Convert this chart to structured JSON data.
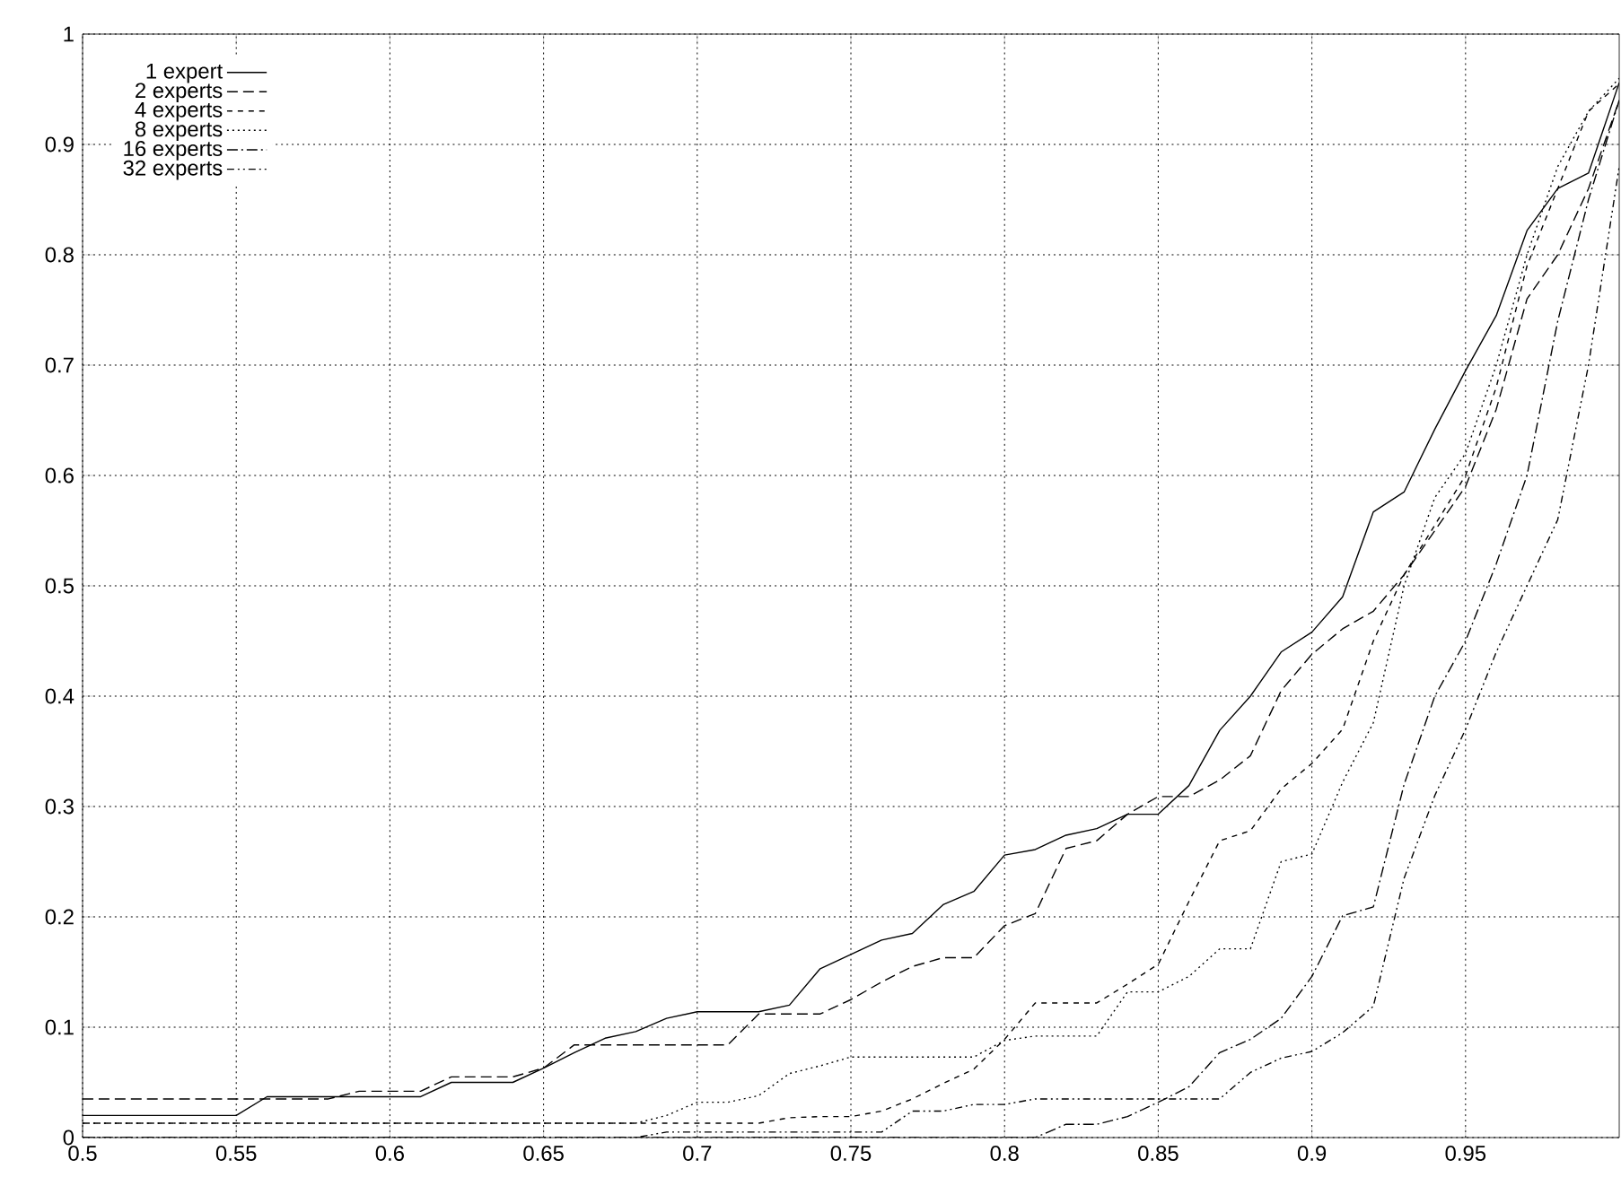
{
  "chart_data": {
    "type": "line",
    "x": [
      0.5,
      0.51,
      0.52,
      0.53,
      0.54,
      0.55,
      0.56,
      0.57,
      0.58,
      0.59,
      0.6,
      0.61,
      0.62,
      0.63,
      0.64,
      0.65,
      0.66,
      0.67,
      0.68,
      0.69,
      0.7,
      0.71,
      0.72,
      0.73,
      0.74,
      0.75,
      0.76,
      0.77,
      0.78,
      0.79,
      0.8,
      0.81,
      0.82,
      0.83,
      0.84,
      0.85,
      0.86,
      0.87,
      0.88,
      0.89,
      0.9,
      0.91,
      0.92,
      0.93,
      0.94,
      0.95,
      0.96,
      0.97,
      0.98,
      0.99,
      1.0
    ],
    "series": [
      {
        "name": "1 expert",
        "color": "#000000",
        "line_style": "solid",
        "values": [
          0.02,
          0.02,
          0.02,
          0.02,
          0.02,
          0.02,
          0.037,
          0.037,
          0.037,
          0.037,
          0.037,
          0.037,
          0.05,
          0.05,
          0.05,
          0.063,
          0.077,
          0.09,
          0.096,
          0.108,
          0.114,
          0.114,
          0.114,
          0.12,
          0.153,
          0.166,
          0.179,
          0.185,
          0.211,
          0.223,
          0.256,
          0.261,
          0.274,
          0.28,
          0.293,
          0.293,
          0.319,
          0.369,
          0.4,
          0.44,
          0.458,
          0.49,
          0.567,
          0.585,
          0.642,
          0.695,
          0.745,
          0.822,
          0.86,
          0.874,
          0.956
        ]
      },
      {
        "name": "2 experts",
        "color": "#000000",
        "line_style": "dashed",
        "values": [
          0.035,
          0.035,
          0.035,
          0.035,
          0.035,
          0.035,
          0.035,
          0.035,
          0.035,
          0.042,
          0.042,
          0.042,
          0.055,
          0.055,
          0.055,
          0.063,
          0.084,
          0.084,
          0.084,
          0.084,
          0.084,
          0.084,
          0.112,
          0.112,
          0.112,
          0.125,
          0.141,
          0.155,
          0.163,
          0.163,
          0.192,
          0.203,
          0.262,
          0.269,
          0.293,
          0.309,
          0.309,
          0.324,
          0.346,
          0.405,
          0.438,
          0.461,
          0.477,
          0.51,
          0.55,
          0.59,
          0.66,
          0.76,
          0.8,
          0.86,
          0.94
        ]
      },
      {
        "name": "4 experts",
        "color": "#000000",
        "line_style": "shortdashed",
        "values": [
          0.013,
          0.013,
          0.013,
          0.013,
          0.013,
          0.013,
          0.013,
          0.013,
          0.013,
          0.013,
          0.013,
          0.013,
          0.013,
          0.013,
          0.013,
          0.013,
          0.013,
          0.013,
          0.013,
          0.013,
          0.013,
          0.013,
          0.013,
          0.018,
          0.019,
          0.019,
          0.024,
          0.035,
          0.049,
          0.062,
          0.089,
          0.122,
          0.122,
          0.122,
          0.139,
          0.157,
          0.214,
          0.269,
          0.278,
          0.316,
          0.339,
          0.37,
          0.45,
          0.51,
          0.555,
          0.6,
          0.68,
          0.79,
          0.86,
          0.93,
          0.955
        ]
      },
      {
        "name": "8 experts",
        "color": "#000000",
        "line_style": "dotted",
        "values": [
          0.013,
          0.013,
          0.013,
          0.013,
          0.013,
          0.013,
          0.013,
          0.013,
          0.013,
          0.013,
          0.013,
          0.013,
          0.013,
          0.013,
          0.013,
          0.013,
          0.013,
          0.013,
          0.013,
          0.02,
          0.032,
          0.032,
          0.038,
          0.058,
          0.065,
          0.073,
          0.073,
          0.073,
          0.073,
          0.073,
          0.088,
          0.092,
          0.092,
          0.092,
          0.132,
          0.132,
          0.146,
          0.171,
          0.171,
          0.25,
          0.257,
          0.322,
          0.376,
          0.5,
          0.58,
          0.62,
          0.7,
          0.8,
          0.88,
          0.93,
          0.96
        ]
      },
      {
        "name": "16 experts",
        "color": "#000000",
        "line_style": "dashdot",
        "values": [
          0,
          0,
          0,
          0,
          0,
          0,
          0,
          0,
          0,
          0,
          0,
          0,
          0,
          0,
          0,
          0,
          0,
          0,
          0,
          0,
          0,
          0,
          0,
          0,
          0,
          0,
          0,
          0,
          0,
          0,
          0,
          0,
          0.012,
          0.012,
          0.019,
          0.032,
          0.046,
          0.077,
          0.089,
          0.108,
          0.146,
          0.201,
          0.209,
          0.32,
          0.4,
          0.45,
          0.52,
          0.6,
          0.74,
          0.85,
          0.94
        ]
      },
      {
        "name": "32 experts",
        "color": "#000000",
        "line_style": "dashdotdot",
        "values": [
          0,
          0,
          0,
          0,
          0,
          0,
          0,
          0,
          0,
          0,
          0,
          0,
          0,
          0,
          0,
          0,
          0,
          0,
          0,
          0.005,
          0.005,
          0.005,
          0.005,
          0.005,
          0.005,
          0.005,
          0.005,
          0.024,
          0.024,
          0.03,
          0.03,
          0.035,
          0.035,
          0.035,
          0.035,
          0.035,
          0.035,
          0.035,
          0.059,
          0.072,
          0.078,
          0.095,
          0.119,
          0.235,
          0.31,
          0.37,
          0.44,
          0.5,
          0.56,
          0.7,
          0.88
        ]
      }
    ],
    "xlim": [
      0.5,
      1.0
    ],
    "ylim": [
      0,
      1
    ],
    "xticks": [
      0.5,
      0.55,
      0.6,
      0.65,
      0.7,
      0.75,
      0.8,
      0.85,
      0.9,
      0.95
    ],
    "yticks": [
      0,
      0.1,
      0.2,
      0.3,
      0.4,
      0.5,
      0.6,
      0.7,
      0.8,
      0.9,
      1
    ],
    "grid": true,
    "legend": "top left"
  }
}
